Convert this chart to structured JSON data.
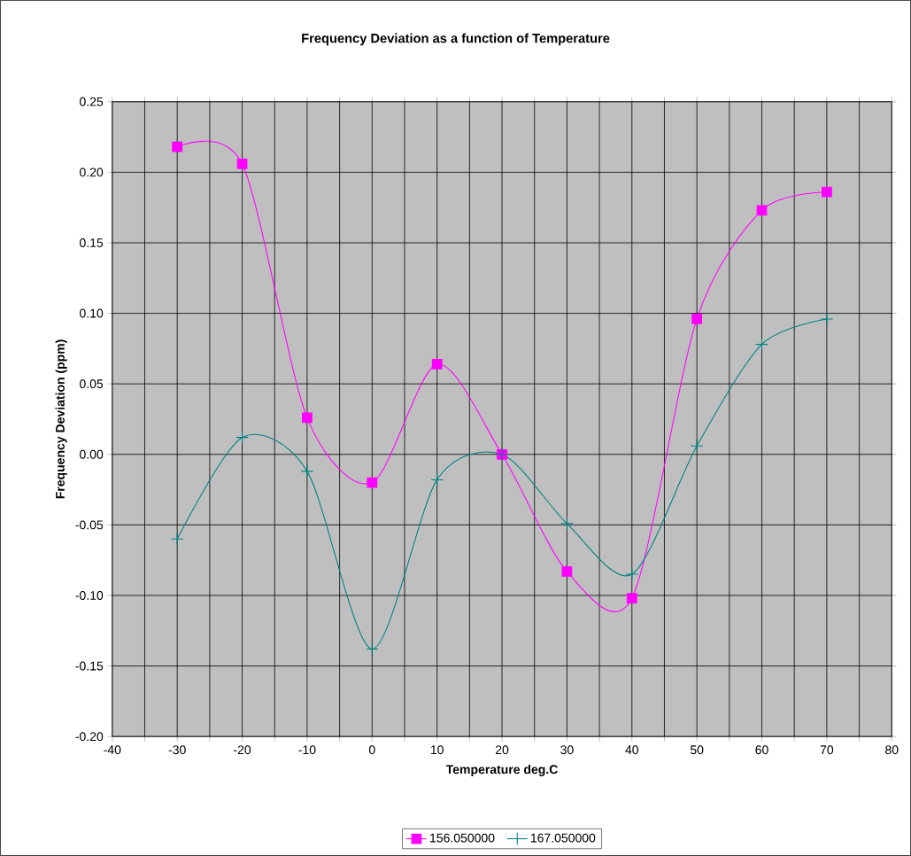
{
  "chart_data": {
    "type": "line",
    "title": "Frequency Deviation as a function of Temperature",
    "xlabel": "Temperature deg.C",
    "ylabel": "Frequency Deviation (ppm)",
    "x": [
      -30,
      -20,
      -10,
      0,
      10,
      20,
      30,
      40,
      50,
      60,
      70
    ],
    "series": [
      {
        "name": "156.050000",
        "color": "#ff00ff",
        "marker": "square",
        "values": [
          0.218,
          0.206,
          0.026,
          -0.02,
          0.064,
          0.0,
          -0.083,
          -0.102,
          0.096,
          0.173,
          0.186
        ]
      },
      {
        "name": "167.050000",
        "color": "#008080",
        "marker": "cross",
        "values": [
          -0.06,
          0.012,
          -0.012,
          -0.138,
          -0.018,
          0.0,
          -0.049,
          -0.085,
          0.006,
          0.078,
          0.096
        ]
      }
    ],
    "xlim": [
      -40,
      80
    ],
    "xticks": [
      -40,
      {
        "value": -35,
        "label": null
      },
      -30,
      {
        "value": -25,
        "label": null
      },
      -20,
      {
        "value": -15,
        "label": null
      },
      -10,
      {
        "value": -5,
        "label": null
      },
      0,
      {
        "value": 5,
        "label": null
      },
      10,
      {
        "value": 15,
        "label": null
      },
      20,
      {
        "value": 25,
        "label": null
      },
      30,
      {
        "value": 35,
        "label": null
      },
      40,
      {
        "value": 45,
        "label": null
      },
      50,
      {
        "value": 55,
        "label": null
      },
      60,
      {
        "value": 65,
        "label": null
      },
      70,
      {
        "value": 75,
        "label": null
      },
      80
    ],
    "ylim": [
      -0.2,
      0.25
    ],
    "yticks": [
      {
        "value": -0.2,
        "label": "-0.20"
      },
      {
        "value": -0.15,
        "label": "-0.15"
      },
      {
        "value": -0.1,
        "label": "-0.10"
      },
      {
        "value": -0.05,
        "label": "-0.05"
      },
      {
        "value": 0,
        "label": "0.00"
      },
      {
        "value": 0.05,
        "label": "0.05"
      },
      {
        "value": 0.1,
        "label": "0.10"
      },
      {
        "value": 0.15,
        "label": "0.15"
      },
      {
        "value": 0.2,
        "label": "0.20"
      },
      {
        "value": 0.25,
        "label": "0.25"
      }
    ],
    "grid": true,
    "legend": "bottom",
    "line_style": "solid"
  }
}
